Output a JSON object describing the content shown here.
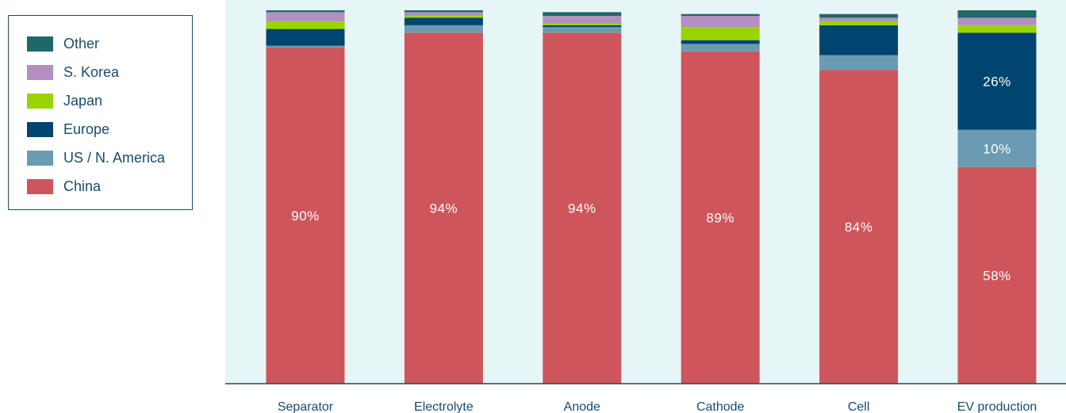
{
  "chart_data": {
    "type": "bar",
    "stacked": true,
    "categories": [
      "Separator",
      "Electrolyte",
      "Anode",
      "Cathode",
      "Cell",
      "EV production"
    ],
    "series": [
      {
        "name": "China",
        "color": "#cd555b",
        "values": [
          90,
          94,
          94,
          89,
          84,
          58
        ]
      },
      {
        "name": "US / N. America",
        "color": "#6a9bb2",
        "values": [
          0.5,
          2,
          1.5,
          2,
          4,
          10
        ]
      },
      {
        "name": "Europe",
        "color": "#00456f",
        "values": [
          4.5,
          2,
          0.5,
          1,
          8,
          26
        ]
      },
      {
        "name": "Japan",
        "color": "#9ad400",
        "values": [
          2,
          0.5,
          0.5,
          3.5,
          1,
          2
        ]
      },
      {
        "name": "S. Korea",
        "color": "#b48fc1",
        "values": [
          2.5,
          1,
          2,
          3,
          1,
          2
        ]
      },
      {
        "name": "Other",
        "color": "#1f6868",
        "values": [
          0.5,
          0.5,
          1,
          0.5,
          1,
          2
        ]
      }
    ],
    "data_labels": [
      {
        "category": "Separator",
        "series": "China",
        "text": "90%"
      },
      {
        "category": "Electrolyte",
        "series": "China",
        "text": "94%"
      },
      {
        "category": "Anode",
        "series": "China",
        "text": "94%"
      },
      {
        "category": "Cathode",
        "series": "China",
        "text": "89%"
      },
      {
        "category": "Cell",
        "series": "China",
        "text": "84%"
      },
      {
        "category": "EV production",
        "series": "China",
        "text": "58%"
      },
      {
        "category": "EV production",
        "series": "US / N. America",
        "text": "10%"
      },
      {
        "category": "EV production",
        "series": "Europe",
        "text": "26%"
      }
    ],
    "ylim": [
      0,
      100
    ],
    "legend_position": "top-left",
    "legend_order": [
      "Other",
      "S. Korea",
      "Japan",
      "Europe",
      "US / N. America",
      "China"
    ],
    "plot_background": "#e6f6f6",
    "axis_color": "#1a4a6e"
  }
}
